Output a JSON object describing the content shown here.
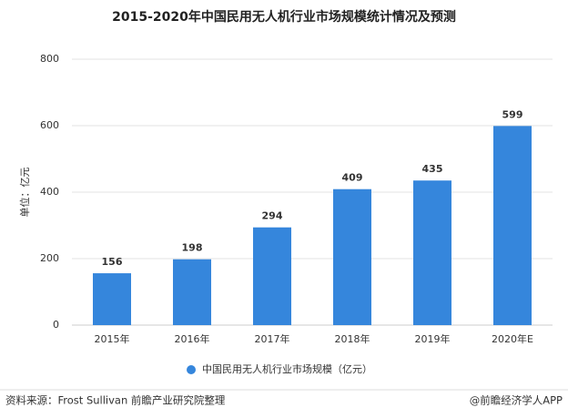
{
  "chart_data": {
    "type": "bar",
    "title": "2015-2020年中国民用无人机行业市场规模统计情况及预测",
    "y_label": "单位：亿元",
    "categories": [
      "2015年",
      "2016年",
      "2017年",
      "2018年",
      "2019年",
      "2020年E"
    ],
    "series": [
      {
        "name": "中国民用无人机行业市场规模（亿元）",
        "color": "#3586dc",
        "values": [
          156,
          198,
          294,
          409,
          435,
          599
        ]
      }
    ],
    "ylim": [
      0,
      800
    ],
    "yticks": [
      0,
      200,
      400,
      600,
      800
    ],
    "grid": true,
    "legend": "bottom"
  },
  "footer": {
    "source": "资料来源：Frost Sullivan 前瞻产业研究院整理",
    "brand": "@前瞻经济学人APP"
  }
}
